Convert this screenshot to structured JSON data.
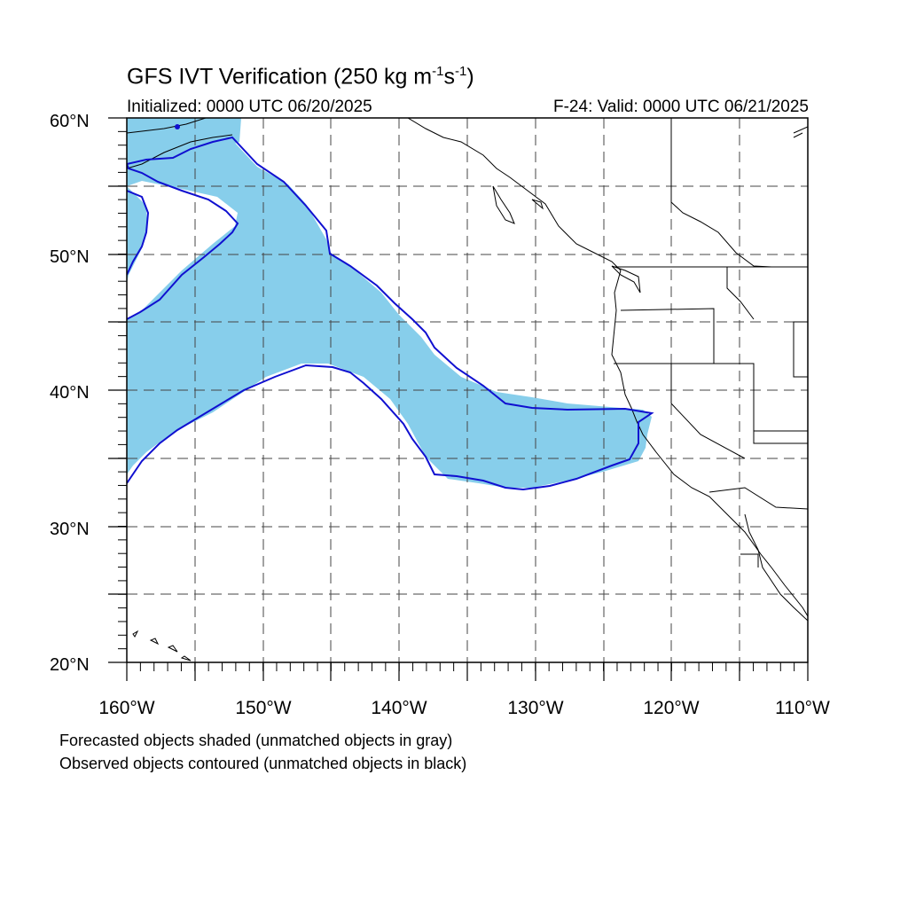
{
  "title": {
    "main": "GFS IVT Verification (250 kg m",
    "exp1": "-1",
    "mid": "s",
    "exp2": "-1",
    "close": ")"
  },
  "initialized": "Initialized: 0000 UTC 06/20/2025",
  "valid": "F-24: Valid: 0000 UTC 06/21/2025",
  "footnotes": [
    "Forecasted objects shaded (unmatched objects in gray)",
    "Observed objects contoured (unmatched objects in black)"
  ],
  "axes": {
    "lon_range": [
      -160,
      -110
    ],
    "lat_range": [
      20,
      60
    ],
    "lon_labels": [
      "160°W",
      "150°W",
      "140°W",
      "130°W",
      "120°W",
      "110°W"
    ],
    "lat_labels": [
      "20°N",
      "30°N",
      "40°N",
      "50°N",
      "60°N"
    ],
    "grid": "dashed, every 5°"
  },
  "colors": {
    "forecast_fill": "#87ceeb",
    "observed_contour": "#1010d0",
    "coastline": "#000000"
  }
}
